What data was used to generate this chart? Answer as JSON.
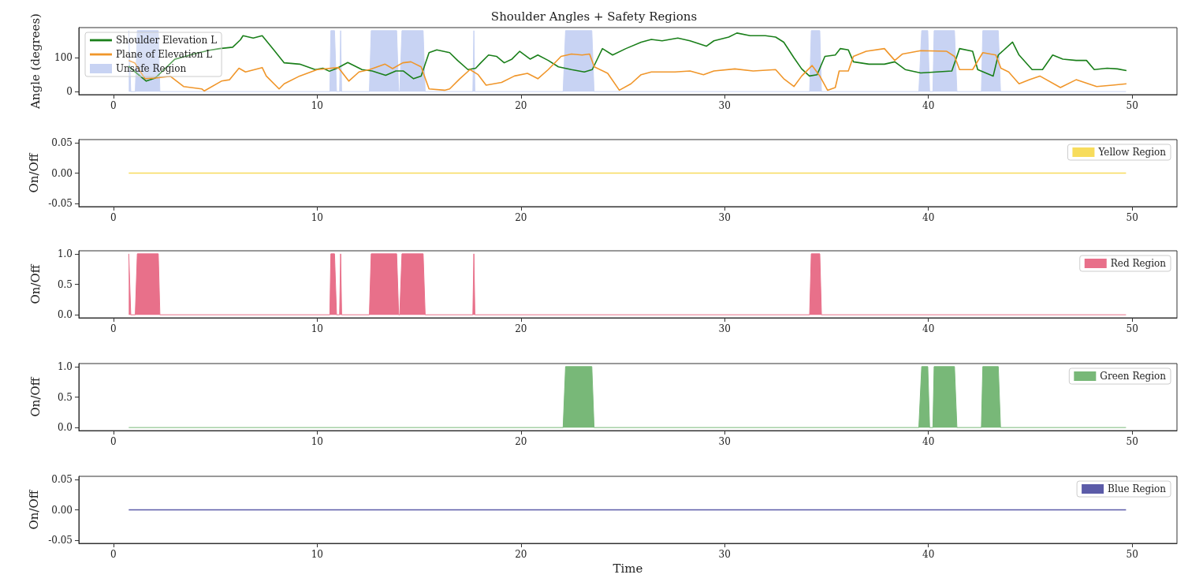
{
  "chart_data": [
    {
      "type": "line",
      "title": "Shoulder Angles + Safety Regions",
      "ylabel": "Angle (degrees)",
      "xlim": [
        -1.7,
        52.2
      ],
      "xticks": [
        0,
        10,
        20,
        30,
        40,
        50
      ],
      "ylim": [
        -9,
        189
      ],
      "yticks": [
        0,
        100
      ],
      "legend": "top left",
      "series": [
        {
          "name": "Shoulder Elevation L",
          "color": "#1a7f1a",
          "x": [
            0.75,
            0.85,
            1.61,
            2.05,
            3,
            4,
            4.7,
            5.21,
            5.85,
            6.23,
            6.36,
            6.86,
            7.3,
            7.87,
            8.38,
            9.14,
            9.9,
            10.28,
            10.6,
            10.98,
            11.5,
            12.2,
            12.7,
            13.36,
            13.86,
            14.22,
            14.73,
            15.1,
            15.49,
            15.87,
            16.5,
            16.89,
            17.4,
            17.78,
            18.03,
            18.41,
            18.8,
            19.18,
            19.56,
            19.94,
            20.45,
            20.83,
            21.34,
            21.84,
            22.48,
            23.11,
            23.5,
            24.0,
            24.5,
            25.15,
            25.9,
            26.4,
            26.93,
            27.7,
            28.3,
            29.1,
            29.47,
            30.2,
            30.6,
            31.25,
            32.0,
            32.5,
            32.9,
            33.4,
            33.78,
            34.16,
            34.54,
            34.92,
            35.43,
            35.68,
            36.07,
            36.32,
            37.08,
            37.84,
            38.35,
            38.86,
            39.62,
            40.39,
            41.15,
            41.53,
            42.17,
            42.42,
            43.18,
            43.43,
            44.13,
            44.45,
            45.09,
            45.6,
            46.1,
            46.6,
            47.25,
            47.76,
            48.14,
            48.77,
            49.28,
            49.72
          ],
          "values": [
            75,
            69,
            31,
            40,
            95,
            112,
            122,
            127,
            131,
            153,
            165,
            158,
            165,
            123,
            85,
            81,
            65,
            69,
            60,
            69,
            86,
            65,
            61,
            48,
            61,
            61,
            38,
            46,
            115,
            123,
            115,
            92,
            65,
            69,
            85,
            108,
            104,
            85,
            96,
            119,
            96,
            108,
            92,
            73,
            65,
            58,
            65,
            127,
            108,
            127,
            146,
            154,
            150,
            158,
            150,
            134,
            150,
            161,
            173,
            165,
            165,
            161,
            146,
            100,
            67,
            46,
            50,
            104,
            108,
            127,
            123,
            88,
            81,
            81,
            88,
            65,
            55,
            58,
            61,
            127,
            119,
            65,
            46,
            108,
            146,
            108,
            65,
            65,
            108,
            96,
            92,
            92,
            65,
            69,
            67,
            62
          ]
        },
        {
          "name": "Plane of Elevation L",
          "color": "#f0962a",
          "x": [
            0.75,
            1.04,
            1.55,
            2.05,
            2.8,
            3.44,
            4.33,
            4.46,
            5.3,
            5.7,
            6.16,
            6.48,
            7.3,
            7.5,
            8.13,
            8.38,
            9.14,
            10.0,
            11.04,
            11.55,
            12.05,
            12.57,
            13.33,
            13.7,
            14.2,
            14.6,
            15.1,
            15.49,
            16.25,
            16.5,
            17.0,
            17.5,
            17.9,
            18.29,
            19.05,
            19.68,
            20.32,
            20.83,
            21.34,
            21.97,
            22.48,
            23.0,
            23.37,
            23.6,
            24.26,
            24.83,
            25.4,
            25.9,
            26.4,
            27.56,
            28.3,
            28.96,
            29.47,
            30.5,
            31.4,
            32.5,
            32.9,
            33.4,
            33.78,
            34.29,
            34.67,
            35.05,
            35.43,
            35.62,
            36.07,
            36.32,
            36.95,
            37.84,
            38.35,
            38.73,
            39.62,
            40.9,
            41.28,
            41.53,
            42.17,
            42.67,
            43.31,
            43.56,
            43.94,
            44.45,
            44.96,
            45.47,
            46.48,
            47.25,
            48.26,
            49.03,
            49.72
          ],
          "values": [
            92,
            85,
            38,
            40,
            45,
            15,
            8,
            2,
            31,
            35,
            69,
            58,
            71,
            46,
            8,
            23,
            46,
            65,
            71,
            31,
            58,
            65,
            81,
            68,
            85,
            88,
            73,
            8,
            4,
            8,
            38,
            65,
            50,
            19,
            27,
            46,
            54,
            38,
            65,
            104,
            111,
            108,
            111,
            73,
            54,
            4,
            23,
            50,
            58,
            58,
            61,
            50,
            61,
            67,
            61,
            65,
            38,
            15,
            46,
            77,
            46,
            4,
            12,
            61,
            61,
            104,
            119,
            127,
            92,
            111,
            121,
            119,
            104,
            65,
            65,
            115,
            108,
            69,
            58,
            23,
            35,
            46,
            12,
            35,
            15,
            19,
            23
          ]
        },
        {
          "name": "Unsafe Region",
          "type": "area",
          "color": "#c8d3f3",
          "x": [
            0.75,
            0.85,
            1.07,
            1.17,
            2.2,
            2.28,
            10.62,
            10.67,
            10.85,
            10.95,
            11.1,
            11.15,
            11.2,
            12.56,
            12.65,
            13.9,
            14.0,
            14.05,
            14.16,
            15.2,
            15.3,
            17.64,
            17.69,
            17.74,
            22.07,
            22.19,
            23.48,
            23.59,
            34.17,
            34.25,
            34.67,
            34.75,
            39.53,
            39.67,
            39.97,
            40.06,
            40.22,
            40.28,
            41.28,
            41.4,
            42.6,
            42.67,
            43.43,
            43.54,
            49.7
          ],
          "values": [
            180,
            0,
            0,
            180,
            180,
            0,
            0,
            180,
            180,
            0,
            0,
            180,
            0,
            0,
            180,
            180,
            0,
            0,
            180,
            180,
            0,
            0,
            180,
            0,
            0,
            180,
            180,
            0,
            0,
            180,
            180,
            0,
            0,
            180,
            180,
            0,
            0,
            180,
            180,
            0,
            0,
            180,
            180,
            0,
            0
          ]
        }
      ]
    },
    {
      "type": "area",
      "ylabel": "On/Off",
      "xlim": [
        -1.7,
        52.2
      ],
      "xticks": [
        0,
        10,
        20,
        30,
        40,
        50
      ],
      "ylim": [
        -0.055,
        0.055
      ],
      "yticks": [
        {
          "value": -0.05,
          "label": "-0.05"
        },
        {
          "value": 0,
          "label": "0.00"
        },
        {
          "value": 0.05,
          "label": "0.05"
        }
      ],
      "legend": "top right",
      "series": [
        {
          "name": "Yellow Region",
          "type": "line",
          "color": "#f7dc5c",
          "x": [
            0.75,
            49.7
          ],
          "values": [
            0,
            0
          ]
        }
      ]
    },
    {
      "type": "area",
      "ylabel": "On/Off",
      "xlim": [
        -1.7,
        52.2
      ],
      "xticks": [
        0,
        10,
        20,
        30,
        40,
        50
      ],
      "ylim": [
        -0.05,
        1.05
      ],
      "yticks": [
        {
          "value": 0,
          "label": "0.0"
        },
        {
          "value": 0.5,
          "label": "0.5"
        },
        {
          "value": 1,
          "label": "1.0"
        }
      ],
      "legend": "top right",
      "series": [
        {
          "name": "Red Region",
          "color": "#e8708a",
          "x": [
            0.75,
            0.85,
            1.07,
            1.17,
            2.2,
            2.28,
            10.62,
            10.67,
            10.85,
            10.95,
            11.1,
            11.15,
            11.2,
            12.56,
            12.65,
            13.9,
            14.0,
            14.05,
            14.16,
            15.2,
            15.3,
            17.64,
            17.69,
            17.74,
            34.17,
            34.25,
            34.67,
            34.75,
            49.7
          ],
          "values": [
            1,
            0,
            0,
            1,
            1,
            0,
            0,
            1,
            1,
            0,
            0,
            1,
            0,
            0,
            1,
            1,
            0,
            0,
            1,
            1,
            0,
            0,
            1,
            0,
            0,
            1,
            1,
            0,
            0
          ]
        }
      ]
    },
    {
      "type": "area",
      "ylabel": "On/Off",
      "xlim": [
        -1.7,
        52.2
      ],
      "xticks": [
        0,
        10,
        20,
        30,
        40,
        50
      ],
      "ylim": [
        -0.05,
        1.05
      ],
      "yticks": [
        {
          "value": 0,
          "label": "0.0"
        },
        {
          "value": 0.5,
          "label": "0.5"
        },
        {
          "value": 1,
          "label": "1.0"
        }
      ],
      "legend": "top right",
      "series": [
        {
          "name": "Green Region",
          "color": "#78b878",
          "x": [
            0.75,
            22.07,
            22.19,
            23.48,
            23.59,
            39.53,
            39.67,
            39.97,
            40.06,
            40.22,
            40.28,
            41.28,
            41.4,
            42.6,
            42.67,
            43.43,
            43.54,
            49.7
          ],
          "values": [
            0,
            0,
            1,
            1,
            0,
            0,
            1,
            1,
            0,
            0,
            1,
            1,
            0,
            0,
            1,
            1,
            0,
            0
          ]
        }
      ]
    },
    {
      "type": "area",
      "ylabel": "On/Off",
      "xlabel": "Time",
      "xlim": [
        -1.7,
        52.2
      ],
      "xticks": [
        0,
        10,
        20,
        30,
        40,
        50
      ],
      "ylim": [
        -0.055,
        0.055
      ],
      "yticks": [
        {
          "value": -0.05,
          "label": "-0.05"
        },
        {
          "value": 0,
          "label": "0.00"
        },
        {
          "value": 0.05,
          "label": "0.05"
        }
      ],
      "legend": "top right",
      "series": [
        {
          "name": "Blue Region",
          "type": "line",
          "color": "#5b5ba8",
          "x": [
            0.75,
            49.7
          ],
          "values": [
            0,
            0
          ]
        }
      ]
    }
  ]
}
